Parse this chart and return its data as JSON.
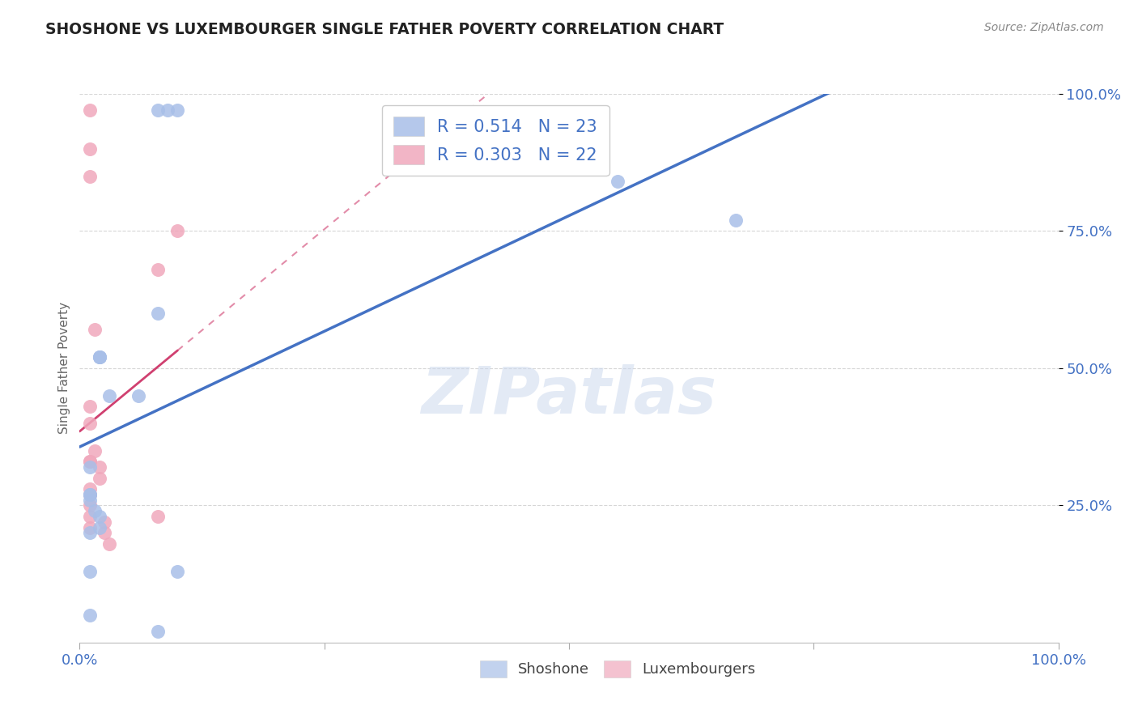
{
  "title": "SHOSHONE VS LUXEMBOURGER SINGLE FATHER POVERTY CORRELATION CHART",
  "source": "Source: ZipAtlas.com",
  "ylabel": "Single Father Poverty",
  "shoshone_R": 0.514,
  "shoshone_N": 23,
  "luxembourger_R": 0.303,
  "luxembourger_N": 22,
  "shoshone_color": "#a8bfe8",
  "luxembourger_color": "#f0a8bc",
  "shoshone_line_color": "#4472c4",
  "luxembourger_line_color": "#d04070",
  "watermark_text": "ZIPatlas",
  "background_color": "#ffffff",
  "grid_color": "#cccccc",
  "shoshone_x": [
    0.08,
    0.09,
    0.1,
    0.02,
    0.02,
    0.02,
    0.01,
    0.01,
    0.01,
    0.01,
    0.015,
    0.02,
    0.02,
    0.03,
    0.01,
    0.06,
    0.01,
    0.01,
    0.1,
    0.55,
    0.67,
    0.08,
    0.08
  ],
  "shoshone_y": [
    0.97,
    0.97,
    0.97,
    0.52,
    0.52,
    0.52,
    0.32,
    0.27,
    0.27,
    0.26,
    0.24,
    0.23,
    0.21,
    0.45,
    0.2,
    0.45,
    0.13,
    0.05,
    0.13,
    0.84,
    0.77,
    0.6,
    0.02
  ],
  "luxembourger_x": [
    0.01,
    0.01,
    0.01,
    0.01,
    0.01,
    0.01,
    0.01,
    0.01,
    0.01,
    0.01,
    0.01,
    0.01,
    0.015,
    0.015,
    0.02,
    0.02,
    0.025,
    0.025,
    0.03,
    0.08,
    0.08,
    0.1
  ],
  "luxembourger_y": [
    0.97,
    0.9,
    0.43,
    0.4,
    0.33,
    0.33,
    0.28,
    0.27,
    0.25,
    0.23,
    0.21,
    0.85,
    0.57,
    0.35,
    0.32,
    0.3,
    0.22,
    0.2,
    0.18,
    0.68,
    0.23,
    0.75
  ],
  "xlim": [
    0.0,
    1.0
  ],
  "ylim": [
    0.0,
    1.0
  ],
  "yticks": [
    0.25,
    0.5,
    0.75,
    1.0
  ],
  "ytick_labels": [
    "25.0%",
    "50.0%",
    "75.0%",
    "100.0%"
  ],
  "xticks": [
    0.0,
    0.25,
    0.5,
    0.75,
    1.0
  ],
  "xtick_labels": [
    "0.0%",
    "",
    "",
    "",
    "100.0%"
  ]
}
